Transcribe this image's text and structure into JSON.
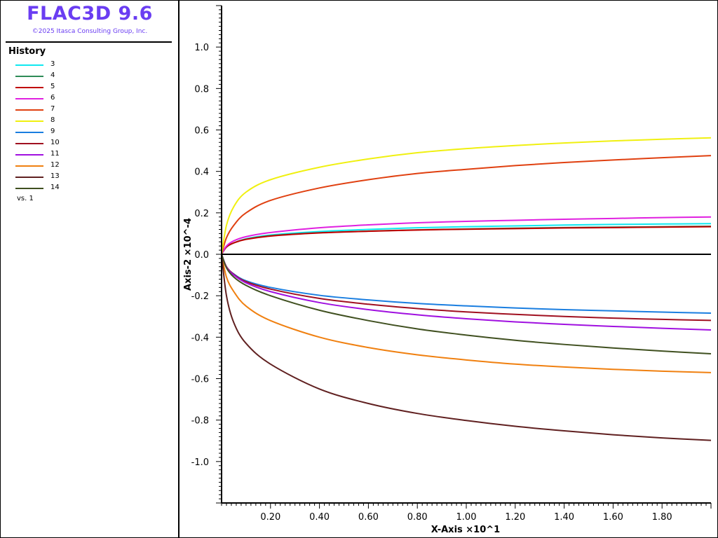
{
  "app": {
    "title": "FLAC3D 9.6",
    "copyright": "©2025 Itasca Consulting Group, Inc."
  },
  "legend": {
    "heading": "History",
    "vs_label": "vs. 1",
    "items": [
      {
        "label": "3",
        "color": "#10e8f0"
      },
      {
        "label": "4",
        "color": "#2e8b57"
      },
      {
        "label": "5",
        "color": "#c00000"
      },
      {
        "label": "6",
        "color": "#e020e0"
      },
      {
        "label": "7",
        "color": "#e04010"
      },
      {
        "label": "8",
        "color": "#f0f010"
      },
      {
        "label": "9",
        "color": "#1a7ee0"
      },
      {
        "label": "10",
        "color": "#a01020"
      },
      {
        "label": "11",
        "color": "#a010e0"
      },
      {
        "label": "12",
        "color": "#f08010"
      },
      {
        "label": "13",
        "color": "#602020"
      },
      {
        "label": "14",
        "color": "#405020"
      }
    ]
  },
  "chart_data": {
    "type": "line",
    "xlabel": "X-Axis ×10^1",
    "ylabel": "Axis-2 ×10^-4",
    "xlim": [
      0,
      2.0
    ],
    "ylim": [
      -1.2,
      1.2
    ],
    "xticks": [
      "0.20",
      "0.40",
      "0.60",
      "0.80",
      "1.00",
      "1.20",
      "1.40",
      "1.60",
      "1.80"
    ],
    "yticks": [
      "1.0",
      "0.8",
      "0.6",
      "0.4",
      "0.2",
      "0.0",
      "-0.2",
      "-0.4",
      "-0.6",
      "-0.8",
      "-1.0"
    ],
    "grid": false,
    "legend_position": "left-panel",
    "x": [
      0.0,
      0.02,
      0.05,
      0.1,
      0.2,
      0.4,
      0.6,
      0.8,
      1.0,
      1.2,
      1.4,
      1.6,
      1.8,
      2.0
    ],
    "series": [
      {
        "name": "3",
        "color": "#10e8f0",
        "values": [
          0.0,
          0.035,
          0.055,
          0.075,
          0.093,
          0.11,
          0.12,
          0.128,
          0.133,
          0.137,
          0.141,
          0.144,
          0.146,
          0.148
        ]
      },
      {
        "name": "4",
        "color": "#2e8b57",
        "values": [
          0.0,
          0.035,
          0.055,
          0.073,
          0.09,
          0.104,
          0.112,
          0.118,
          0.122,
          0.126,
          0.129,
          0.131,
          0.133,
          0.135
        ]
      },
      {
        "name": "5",
        "color": "#c00000",
        "values": [
          0.0,
          0.035,
          0.055,
          0.072,
          0.088,
          0.103,
          0.111,
          0.117,
          0.121,
          0.124,
          0.127,
          0.129,
          0.131,
          0.133
        ]
      },
      {
        "name": "6",
        "color": "#e020e0",
        "values": [
          0.0,
          0.04,
          0.065,
          0.085,
          0.105,
          0.128,
          0.142,
          0.152,
          0.159,
          0.164,
          0.169,
          0.173,
          0.177,
          0.18
        ]
      },
      {
        "name": "7",
        "color": "#e04010",
        "values": [
          0.0,
          0.08,
          0.14,
          0.2,
          0.26,
          0.32,
          0.36,
          0.39,
          0.41,
          0.428,
          0.443,
          0.455,
          0.466,
          0.476
        ]
      },
      {
        "name": "8",
        "color": "#f0f010",
        "values": [
          0.0,
          0.14,
          0.23,
          0.3,
          0.36,
          0.42,
          0.46,
          0.49,
          0.51,
          0.525,
          0.537,
          0.547,
          0.555,
          0.562
        ]
      },
      {
        "name": "9",
        "color": "#1a7ee0",
        "values": [
          0.0,
          -0.06,
          -0.095,
          -0.128,
          -0.16,
          -0.198,
          -0.22,
          -0.237,
          -0.249,
          -0.259,
          -0.267,
          -0.273,
          -0.279,
          -0.284
        ]
      },
      {
        "name": "10",
        "color": "#a01020",
        "values": [
          0.0,
          -0.06,
          -0.097,
          -0.132,
          -0.168,
          -0.213,
          -0.241,
          -0.262,
          -0.278,
          -0.29,
          -0.3,
          -0.308,
          -0.314,
          -0.319
        ]
      },
      {
        "name": "11",
        "color": "#a010e0",
        "values": [
          0.0,
          -0.062,
          -0.1,
          -0.138,
          -0.18,
          -0.233,
          -0.267,
          -0.292,
          -0.311,
          -0.326,
          -0.338,
          -0.348,
          -0.357,
          -0.365
        ]
      },
      {
        "name": "12",
        "color": "#f08010",
        "values": [
          0.0,
          -0.11,
          -0.18,
          -0.25,
          -0.32,
          -0.4,
          -0.45,
          -0.485,
          -0.51,
          -0.53,
          -0.544,
          -0.555,
          -0.564,
          -0.571
        ]
      },
      {
        "name": "13",
        "color": "#602020",
        "values": [
          0.0,
          -0.2,
          -0.33,
          -0.43,
          -0.53,
          -0.65,
          -0.72,
          -0.768,
          -0.802,
          -0.83,
          -0.852,
          -0.871,
          -0.886,
          -0.898
        ]
      },
      {
        "name": "14",
        "color": "#405020",
        "values": [
          0.0,
          -0.065,
          -0.11,
          -0.15,
          -0.2,
          -0.27,
          -0.32,
          -0.36,
          -0.39,
          -0.415,
          -0.435,
          -0.452,
          -0.467,
          -0.48
        ]
      }
    ]
  }
}
